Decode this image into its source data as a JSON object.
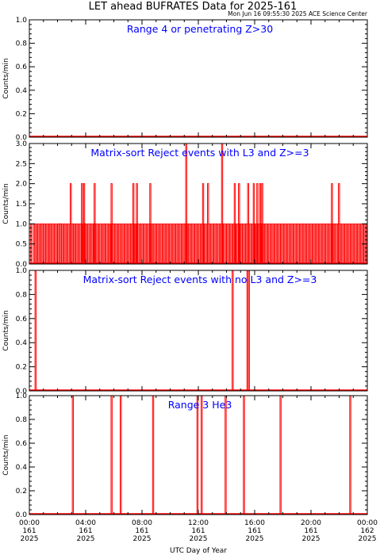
{
  "title": "LET ahead BUFRATES Data for 2025-161",
  "timestamp": "Mon Jun 16 09:55:30 2025 ACE Science Center",
  "colors": {
    "data": "#ff0000",
    "panel_title": "#0000ff",
    "axes": "#000000"
  },
  "chart_data": [
    {
      "type": "line",
      "title": "Range 4 or   penetrating Z>30",
      "ylabel": "Counts/min",
      "ylim": [
        0,
        1
      ],
      "yticks": [
        "0.0",
        "0.2",
        "0.4",
        "0.6",
        "0.8",
        "1.0"
      ],
      "x_unit": "hours",
      "spikes": []
    },
    {
      "type": "line",
      "title": "Matrix-sort Reject events with L3 and Z>=3",
      "ylabel": "Counts/min",
      "ylim": [
        0,
        3
      ],
      "yticks": [
        "0.0",
        "0.5",
        "1.0",
        "1.5",
        "2.0",
        "2.5",
        "3.0"
      ],
      "x_unit": "hours",
      "spikes": [
        [
          0.1,
          1
        ],
        [
          0.3,
          1
        ],
        [
          0.45,
          1
        ],
        [
          0.6,
          1
        ],
        [
          0.75,
          1
        ],
        [
          0.9,
          1
        ],
        [
          1.0,
          1
        ],
        [
          1.15,
          1
        ],
        [
          1.3,
          1
        ],
        [
          1.45,
          1
        ],
        [
          1.55,
          1
        ],
        [
          1.7,
          1
        ],
        [
          1.85,
          1
        ],
        [
          2.0,
          1
        ],
        [
          2.1,
          1
        ],
        [
          2.2,
          1
        ],
        [
          2.3,
          1
        ],
        [
          2.45,
          1
        ],
        [
          2.6,
          1
        ],
        [
          2.75,
          1
        ],
        [
          2.9,
          1
        ],
        [
          3.05,
          1
        ],
        [
          3.15,
          1
        ],
        [
          3.3,
          1
        ],
        [
          3.45,
          1
        ],
        [
          3.6,
          1
        ],
        [
          3.75,
          1
        ],
        [
          3.9,
          1
        ],
        [
          4.0,
          1
        ],
        [
          4.15,
          1
        ],
        [
          4.3,
          1
        ],
        [
          4.45,
          1
        ],
        [
          4.55,
          1
        ],
        [
          4.7,
          1
        ],
        [
          4.85,
          1
        ],
        [
          5.0,
          1
        ],
        [
          5.15,
          1
        ],
        [
          5.3,
          1
        ],
        [
          5.45,
          1
        ],
        [
          5.6,
          1
        ],
        [
          5.75,
          1
        ],
        [
          5.9,
          1
        ],
        [
          6.05,
          1
        ],
        [
          6.2,
          1
        ],
        [
          6.35,
          1
        ],
        [
          6.5,
          1
        ],
        [
          6.65,
          1
        ],
        [
          6.8,
          1
        ],
        [
          6.95,
          1
        ],
        [
          7.1,
          1
        ],
        [
          7.25,
          1
        ],
        [
          7.4,
          1
        ],
        [
          7.55,
          1
        ],
        [
          7.7,
          1
        ],
        [
          7.85,
          1
        ],
        [
          8.0,
          1
        ],
        [
          8.15,
          1
        ],
        [
          8.3,
          1
        ],
        [
          8.45,
          1
        ],
        [
          8.6,
          1
        ],
        [
          8.75,
          1
        ],
        [
          8.9,
          1
        ],
        [
          9.05,
          1
        ],
        [
          9.2,
          1
        ],
        [
          9.35,
          1
        ],
        [
          9.5,
          1
        ],
        [
          9.65,
          1
        ],
        [
          9.8,
          1
        ],
        [
          9.95,
          1
        ],
        [
          10.1,
          1
        ],
        [
          10.25,
          1
        ],
        [
          10.4,
          1
        ],
        [
          10.55,
          1
        ],
        [
          10.7,
          1
        ],
        [
          10.85,
          1
        ],
        [
          11.0,
          1
        ],
        [
          11.15,
          1
        ],
        [
          11.3,
          1
        ],
        [
          11.45,
          1
        ],
        [
          11.6,
          1
        ],
        [
          11.75,
          1
        ],
        [
          11.9,
          1
        ],
        [
          12.05,
          1
        ],
        [
          12.2,
          1
        ],
        [
          12.35,
          1
        ],
        [
          12.5,
          1
        ],
        [
          12.65,
          1
        ],
        [
          12.8,
          1
        ],
        [
          12.95,
          1
        ],
        [
          13.1,
          1
        ],
        [
          13.25,
          1
        ],
        [
          13.4,
          1
        ],
        [
          13.55,
          1
        ],
        [
          13.7,
          1
        ],
        [
          13.85,
          1
        ],
        [
          14.0,
          1
        ],
        [
          14.15,
          1
        ],
        [
          14.3,
          1
        ],
        [
          14.45,
          1
        ],
        [
          14.6,
          1
        ],
        [
          14.75,
          1
        ],
        [
          14.9,
          1
        ],
        [
          15.05,
          1
        ],
        [
          15.2,
          1
        ],
        [
          15.35,
          1
        ],
        [
          15.5,
          1
        ],
        [
          15.65,
          1
        ],
        [
          15.8,
          1
        ],
        [
          15.95,
          1
        ],
        [
          16.1,
          1
        ],
        [
          16.25,
          1
        ],
        [
          16.4,
          1
        ],
        [
          16.55,
          1
        ],
        [
          16.7,
          1
        ],
        [
          16.85,
          1
        ],
        [
          17.0,
          1
        ],
        [
          17.15,
          1
        ],
        [
          17.3,
          1
        ],
        [
          17.45,
          1
        ],
        [
          17.6,
          1
        ],
        [
          17.75,
          1
        ],
        [
          17.9,
          1
        ],
        [
          18.05,
          1
        ],
        [
          18.2,
          1
        ],
        [
          18.35,
          1
        ],
        [
          18.5,
          1
        ],
        [
          18.65,
          1
        ],
        [
          18.8,
          1
        ],
        [
          18.95,
          1
        ],
        [
          19.1,
          1
        ],
        [
          19.25,
          1
        ],
        [
          19.4,
          1
        ],
        [
          19.55,
          1
        ],
        [
          19.7,
          1
        ],
        [
          19.85,
          1
        ],
        [
          20.0,
          1
        ],
        [
          20.15,
          1
        ],
        [
          20.3,
          1
        ],
        [
          20.45,
          1
        ],
        [
          20.6,
          1
        ],
        [
          20.75,
          1
        ],
        [
          20.9,
          1
        ],
        [
          21.05,
          1
        ],
        [
          21.2,
          1
        ],
        [
          21.35,
          1
        ],
        [
          21.5,
          1
        ],
        [
          21.65,
          1
        ],
        [
          21.8,
          1
        ],
        [
          21.95,
          1
        ],
        [
          22.1,
          1
        ],
        [
          22.25,
          1
        ],
        [
          22.4,
          1
        ],
        [
          22.55,
          1
        ],
        [
          22.7,
          1
        ],
        [
          22.85,
          1
        ],
        [
          23.0,
          1
        ],
        [
          23.15,
          1
        ],
        [
          23.3,
          1
        ],
        [
          23.45,
          1
        ],
        [
          23.6,
          1
        ],
        [
          23.75,
          1
        ],
        [
          23.9,
          1
        ],
        [
          2.9,
          2
        ],
        [
          3.7,
          2
        ],
        [
          3.85,
          2
        ],
        [
          4.6,
          2
        ],
        [
          5.8,
          2
        ],
        [
          7.35,
          2
        ],
        [
          7.6,
          2
        ],
        [
          8.55,
          2
        ],
        [
          11.1,
          3
        ],
        [
          12.3,
          2
        ],
        [
          12.65,
          2
        ],
        [
          13.65,
          3
        ],
        [
          14.55,
          2
        ],
        [
          14.85,
          2
        ],
        [
          15.5,
          2
        ],
        [
          15.9,
          2
        ],
        [
          16.15,
          2
        ],
        [
          16.35,
          2
        ],
        [
          16.5,
          2
        ],
        [
          21.45,
          2
        ],
        [
          21.95,
          2
        ]
      ]
    },
    {
      "type": "line",
      "title": "Matrix-sort Reject events with no L3 and Z>=3",
      "ylabel": "Counts/min",
      "ylim": [
        0,
        1
      ],
      "yticks": [
        "0.0",
        "0.2",
        "0.4",
        "0.6",
        "0.8",
        "1.0"
      ],
      "x_unit": "hours",
      "spikes": [
        [
          0.4,
          1
        ],
        [
          14.4,
          1
        ],
        [
          15.45,
          1
        ],
        [
          15.55,
          1
        ]
      ]
    },
    {
      "type": "line",
      "title": "Range 3 He3",
      "ylabel": "Counts/min",
      "ylim": [
        0,
        1
      ],
      "yticks": [
        "0.0",
        "0.2",
        "0.4",
        "0.6",
        "0.8",
        "1.0"
      ],
      "x_unit": "hours",
      "spikes": [
        [
          3.05,
          1
        ],
        [
          5.8,
          1
        ],
        [
          6.45,
          1
        ],
        [
          8.75,
          1
        ],
        [
          11.9,
          1
        ],
        [
          12.2,
          1
        ],
        [
          13.9,
          1
        ],
        [
          15.2,
          1
        ],
        [
          17.8,
          1
        ],
        [
          22.75,
          1
        ]
      ]
    }
  ],
  "xaxis": {
    "label": "UTC Day of Year",
    "range_hours": [
      0,
      24
    ],
    "ticks": [
      {
        "hour": 0,
        "time": "00:00",
        "doy": "161",
        "year": "2025"
      },
      {
        "hour": 4,
        "time": "04:00",
        "doy": "161",
        "year": "2025"
      },
      {
        "hour": 8,
        "time": "08:00",
        "doy": "161",
        "year": "2025"
      },
      {
        "hour": 12,
        "time": "12:00",
        "doy": "161",
        "year": "2025"
      },
      {
        "hour": 16,
        "time": "16:00",
        "doy": "161",
        "year": "2025"
      },
      {
        "hour": 20,
        "time": "20:00",
        "doy": "161",
        "year": "2025"
      },
      {
        "hour": 24,
        "time": "00:00",
        "doy": "162",
        "year": "2025"
      }
    ]
  }
}
